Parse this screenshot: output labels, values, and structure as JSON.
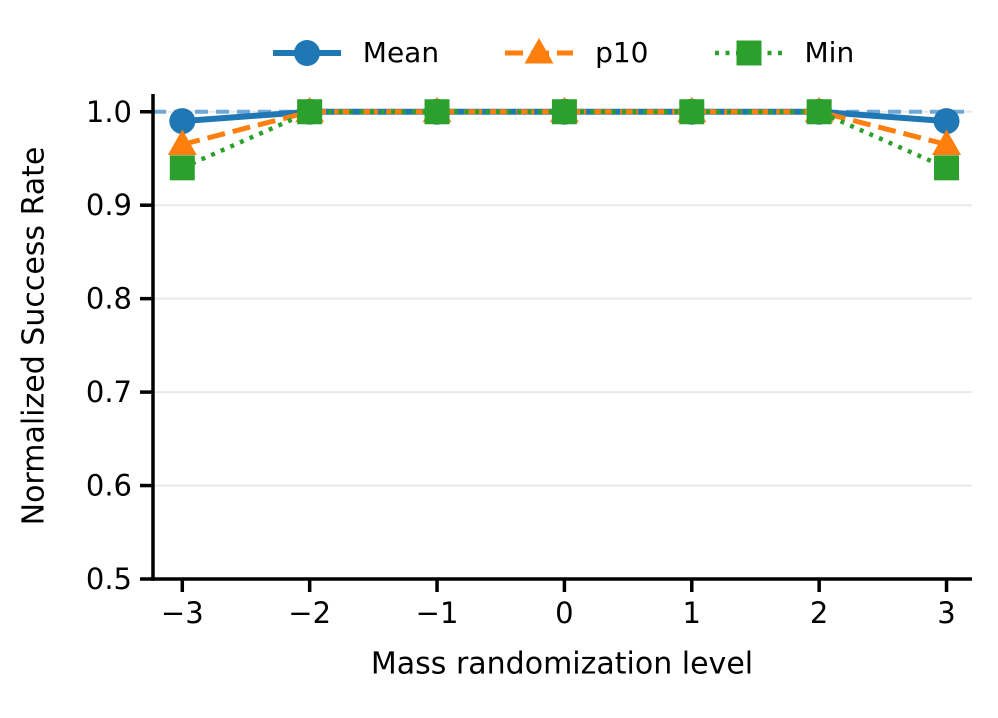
{
  "chart_data": {
    "type": "line",
    "title": "",
    "xlabel": "Mass randomization level",
    "ylabel": "Normalized Success Rate",
    "x": [
      -3,
      -2,
      -1,
      0,
      1,
      2,
      3
    ],
    "series": [
      {
        "name": "Mean",
        "color": "#1f77b4",
        "linestyle": "solid",
        "marker": "circle",
        "values": [
          0.99,
          1.0,
          1.0,
          1.0,
          1.0,
          1.0,
          0.99
        ]
      },
      {
        "name": "p10",
        "color": "#ff7f0e",
        "linestyle": "dashed",
        "marker": "triangle",
        "values": [
          0.965,
          1.0,
          1.0,
          1.0,
          1.0,
          1.0,
          0.965
        ]
      },
      {
        "name": "Min",
        "color": "#2ca02c",
        "linestyle": "dotted",
        "marker": "square",
        "values": [
          0.94,
          1.0,
          1.0,
          1.0,
          1.0,
          1.0,
          0.94
        ]
      }
    ],
    "reference_line": {
      "y": 1.0,
      "color": "#6fa8d6",
      "style": "dashed"
    },
    "xticks": [
      -3,
      -2,
      -1,
      0,
      1,
      2,
      3
    ],
    "xtick_labels": [
      "−3",
      "−2",
      "−1",
      "0",
      "1",
      "2",
      "3"
    ],
    "yticks": [
      0.5,
      0.6,
      0.7,
      0.8,
      0.9,
      1.0
    ],
    "ytick_labels": [
      "0.5",
      "0.6",
      "0.7",
      "0.8",
      "0.9",
      "1.0"
    ],
    "xlim": [
      -3.23,
      3.2
    ],
    "ylim": [
      0.5,
      1.019
    ],
    "grid": "horizontal",
    "grid_color": "#e8e8e8",
    "axis_color": "#000000",
    "legend": {
      "position": "top-center",
      "frame": false,
      "entries": [
        "Mean",
        "p10",
        "Min"
      ]
    }
  }
}
